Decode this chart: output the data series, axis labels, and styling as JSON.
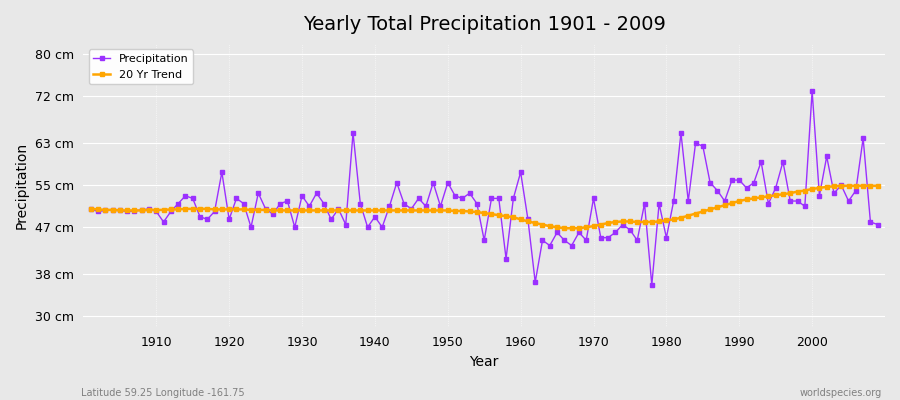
{
  "title": "Yearly Total Precipitation 1901 - 2009",
  "xlabel": "Year",
  "ylabel": "Precipitation",
  "subtitle": "Latitude 59.25 Longitude -161.75",
  "watermark": "worldspecies.org",
  "years": [
    1901,
    1902,
    1903,
    1904,
    1905,
    1906,
    1907,
    1908,
    1909,
    1910,
    1911,
    1912,
    1913,
    1914,
    1915,
    1916,
    1917,
    1918,
    1919,
    1920,
    1921,
    1922,
    1923,
    1924,
    1925,
    1926,
    1927,
    1928,
    1929,
    1930,
    1931,
    1932,
    1933,
    1934,
    1935,
    1936,
    1937,
    1938,
    1939,
    1940,
    1941,
    1942,
    1943,
    1944,
    1945,
    1946,
    1947,
    1948,
    1949,
    1950,
    1951,
    1952,
    1953,
    1954,
    1955,
    1956,
    1957,
    1958,
    1959,
    1960,
    1961,
    1962,
    1963,
    1964,
    1965,
    1966,
    1967,
    1968,
    1969,
    1970,
    1971,
    1972,
    1973,
    1974,
    1975,
    1976,
    1977,
    1978,
    1979,
    1980,
    1981,
    1982,
    1983,
    1984,
    1985,
    1986,
    1987,
    1988,
    1989,
    1990,
    1991,
    1992,
    1993,
    1994,
    1995,
    1996,
    1997,
    1998,
    1999,
    2000,
    2001,
    2002,
    2003,
    2004,
    2005,
    2006,
    2007,
    2008,
    2009
  ],
  "precipitation": [
    50.5,
    50.0,
    50.2,
    50.3,
    50.2,
    50.0,
    50.1,
    50.3,
    50.5,
    50.0,
    48.0,
    50.0,
    51.5,
    53.0,
    52.5,
    49.0,
    48.5,
    50.0,
    57.5,
    48.5,
    52.5,
    51.5,
    47.0,
    53.5,
    50.5,
    49.5,
    51.5,
    52.0,
    47.0,
    53.0,
    51.0,
    53.5,
    51.5,
    48.5,
    50.5,
    47.5,
    65.0,
    51.5,
    47.0,
    49.0,
    47.0,
    51.0,
    55.5,
    51.5,
    50.5,
    52.5,
    51.0,
    55.5,
    51.0,
    55.5,
    53.0,
    52.5,
    53.5,
    51.5,
    44.5,
    52.5,
    52.5,
    41.0,
    52.5,
    57.5,
    48.5,
    36.5,
    44.5,
    43.5,
    46.0,
    44.5,
    43.5,
    46.0,
    44.5,
    52.5,
    45.0,
    45.0,
    46.0,
    47.5,
    46.5,
    44.5,
    51.5,
    36.0,
    51.5,
    45.0,
    52.0,
    65.0,
    52.0,
    63.0,
    62.5,
    55.5,
    54.0,
    52.0,
    56.0,
    56.0,
    54.5,
    55.5,
    59.5,
    51.5,
    54.5,
    59.5,
    52.0,
    52.0,
    51.0,
    73.0,
    53.0,
    60.5,
    53.5,
    55.0,
    52.0,
    54.0,
    64.0,
    48.0,
    47.5
  ],
  "trend": [
    50.5,
    50.4,
    50.3,
    50.3,
    50.2,
    50.2,
    50.2,
    50.2,
    50.3,
    50.3,
    50.3,
    50.4,
    50.4,
    50.5,
    50.5,
    50.5,
    50.5,
    50.4,
    50.4,
    50.4,
    50.4,
    50.4,
    50.3,
    50.3,
    50.3,
    50.2,
    50.2,
    50.2,
    50.2,
    50.2,
    50.2,
    50.2,
    50.2,
    50.2,
    50.2,
    50.2,
    50.2,
    50.2,
    50.2,
    50.2,
    50.2,
    50.2,
    50.2,
    50.2,
    50.2,
    50.2,
    50.2,
    50.2,
    50.2,
    50.2,
    50.1,
    50.1,
    50.0,
    49.9,
    49.7,
    49.5,
    49.3,
    49.1,
    48.9,
    48.5,
    48.1,
    47.8,
    47.5,
    47.2,
    47.0,
    46.8,
    46.8,
    46.8,
    47.0,
    47.2,
    47.5,
    47.8,
    48.0,
    48.1,
    48.1,
    48.0,
    48.0,
    48.0,
    48.1,
    48.3,
    48.5,
    48.8,
    49.2,
    49.6,
    50.0,
    50.4,
    50.8,
    51.2,
    51.6,
    52.0,
    52.3,
    52.5,
    52.7,
    52.9,
    53.1,
    53.3,
    53.5,
    53.8,
    54.0,
    54.3,
    54.5,
    54.7,
    54.8,
    54.9,
    54.9,
    54.9,
    54.9,
    54.9,
    54.9
  ],
  "precip_color": "#9B30FF",
  "trend_color": "#FFA500",
  "background_color": "#E8E8E8",
  "yticks": [
    30,
    38,
    47,
    55,
    63,
    72,
    80
  ],
  "ytick_labels": [
    "30 cm",
    "38 cm",
    "47 cm",
    "55 cm",
    "63 cm",
    "72 cm",
    "80 cm"
  ],
  "ylim": [
    28,
    82
  ],
  "xlim": [
    1900,
    2010
  ],
  "xticks": [
    1910,
    1920,
    1930,
    1940,
    1950,
    1960,
    1970,
    1980,
    1990,
    2000
  ]
}
